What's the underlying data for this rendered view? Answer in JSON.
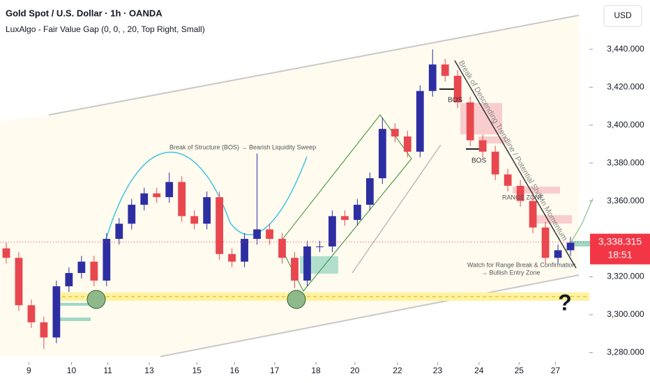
{
  "chart_data": {
    "type": "candlestick",
    "title": "Gold Spot / U.S. Dollar · 1h · OANDA",
    "subtitle": "LuxAlgo - Fair Value Gap (0, 0, , 20, Top Right, Small)",
    "currency": "USD",
    "open": [
      3335,
      3330,
      3305,
      3296,
      3288,
      3315,
      3322,
      3328,
      3318,
      3340,
      3348,
      3358,
      3364,
      3362,
      3370,
      3352,
      3348,
      3362,
      3332,
      3328,
      3340,
      3345,
      3340,
      3330,
      3318,
      3336,
      3336,
      3352,
      3350,
      3358,
      3372,
      3398,
      3394,
      3386,
      3418,
      3432,
      3426,
      3412,
      3392,
      3386,
      3374,
      3368,
      3360,
      3346,
      3330,
      3334
    ],
    "high": [
      3338,
      3333,
      3308,
      3299,
      3318,
      3325,
      3331,
      3331,
      3343,
      3351,
      3361,
      3367,
      3367,
      3375,
      3373,
      3355,
      3365,
      3365,
      3335,
      3343,
      3385,
      3348,
      3343,
      3333,
      3339,
      3339,
      3355,
      3355,
      3361,
      3375,
      3404,
      3401,
      3397,
      3421,
      3440,
      3435,
      3429,
      3415,
      3395,
      3389,
      3377,
      3371,
      3363,
      3349,
      3337,
      3341
    ],
    "low": [
      3327,
      3302,
      3293,
      3282,
      3285,
      3312,
      3319,
      3315,
      3315,
      3337,
      3345,
      3355,
      3359,
      3359,
      3349,
      3345,
      3345,
      3329,
      3325,
      3325,
      3337,
      3337,
      3327,
      3314,
      3315,
      3333,
      3333,
      3347,
      3347,
      3355,
      3369,
      3391,
      3383,
      3383,
      3415,
      3423,
      3409,
      3389,
      3383,
      3371,
      3365,
      3357,
      3343,
      3327,
      3327,
      3331
    ],
    "close": [
      3330,
      3305,
      3296,
      3288,
      3315,
      3322,
      3328,
      3318,
      3340,
      3348,
      3358,
      3364,
      3362,
      3370,
      3352,
      3348,
      3362,
      3332,
      3328,
      3340,
      3345,
      3340,
      3330,
      3318,
      3336,
      3336,
      3352,
      3350,
      3358,
      3372,
      3398,
      3394,
      3386,
      3418,
      3432,
      3426,
      3412,
      3392,
      3386,
      3374,
      3368,
      3360,
      3346,
      3330,
      3334,
      3338
    ],
    "up_color": "#2e2ea3",
    "down_color": "#e8474f",
    "xlim": [
      -0.5,
      46.5
    ],
    "xticks": [
      {
        "value": 1.8,
        "label": "9"
      },
      {
        "value": 5.2,
        "label": "10"
      },
      {
        "value": 8.1,
        "label": "11"
      },
      {
        "value": 11.4,
        "label": "13"
      },
      {
        "value": 15.2,
        "label": "15"
      },
      {
        "value": 18.2,
        "label": "16"
      },
      {
        "value": 21.4,
        "label": "17"
      },
      {
        "value": 24.7,
        "label": "18"
      },
      {
        "value": 27.8,
        "label": "20"
      },
      {
        "value": 31.2,
        "label": "22"
      },
      {
        "value": 34.4,
        "label": "23"
      },
      {
        "value": 37.7,
        "label": "24"
      },
      {
        "value": 40.9,
        "label": "25"
      },
      {
        "value": 43.8,
        "label": "27"
      }
    ],
    "ylim": [
      3275,
      3466
    ],
    "yticks": [
      {
        "value": 3280,
        "label": "3,280.000"
      },
      {
        "value": 3300,
        "label": "3,300.000"
      },
      {
        "value": 3320,
        "label": "3,320.000"
      },
      {
        "value": 3360,
        "label": "3,360.000"
      },
      {
        "value": 3380,
        "label": "3,380.000"
      },
      {
        "value": 3400,
        "label": "3,400.000"
      },
      {
        "value": 3420,
        "label": "3,420.000"
      },
      {
        "value": 3440,
        "label": "3,440.000"
      }
    ],
    "last_price": 3338.315,
    "last_price_label": "3,338.315",
    "countdown": "18:51",
    "annotations": {
      "bos_sweep": "Break of Structure (BOS) → Bearish Liquidity Sweep",
      "bos_1": "BOS",
      "bos_2": "BOS",
      "trendline": "Break of Descending Trendline / Potential Shift In Momentum",
      "range_zone": "RANGE ZONE",
      "watch_1": "Watch for Range Break & Confirmation",
      "watch_2": "→ Bullish Entry Zone",
      "question": "?"
    }
  }
}
